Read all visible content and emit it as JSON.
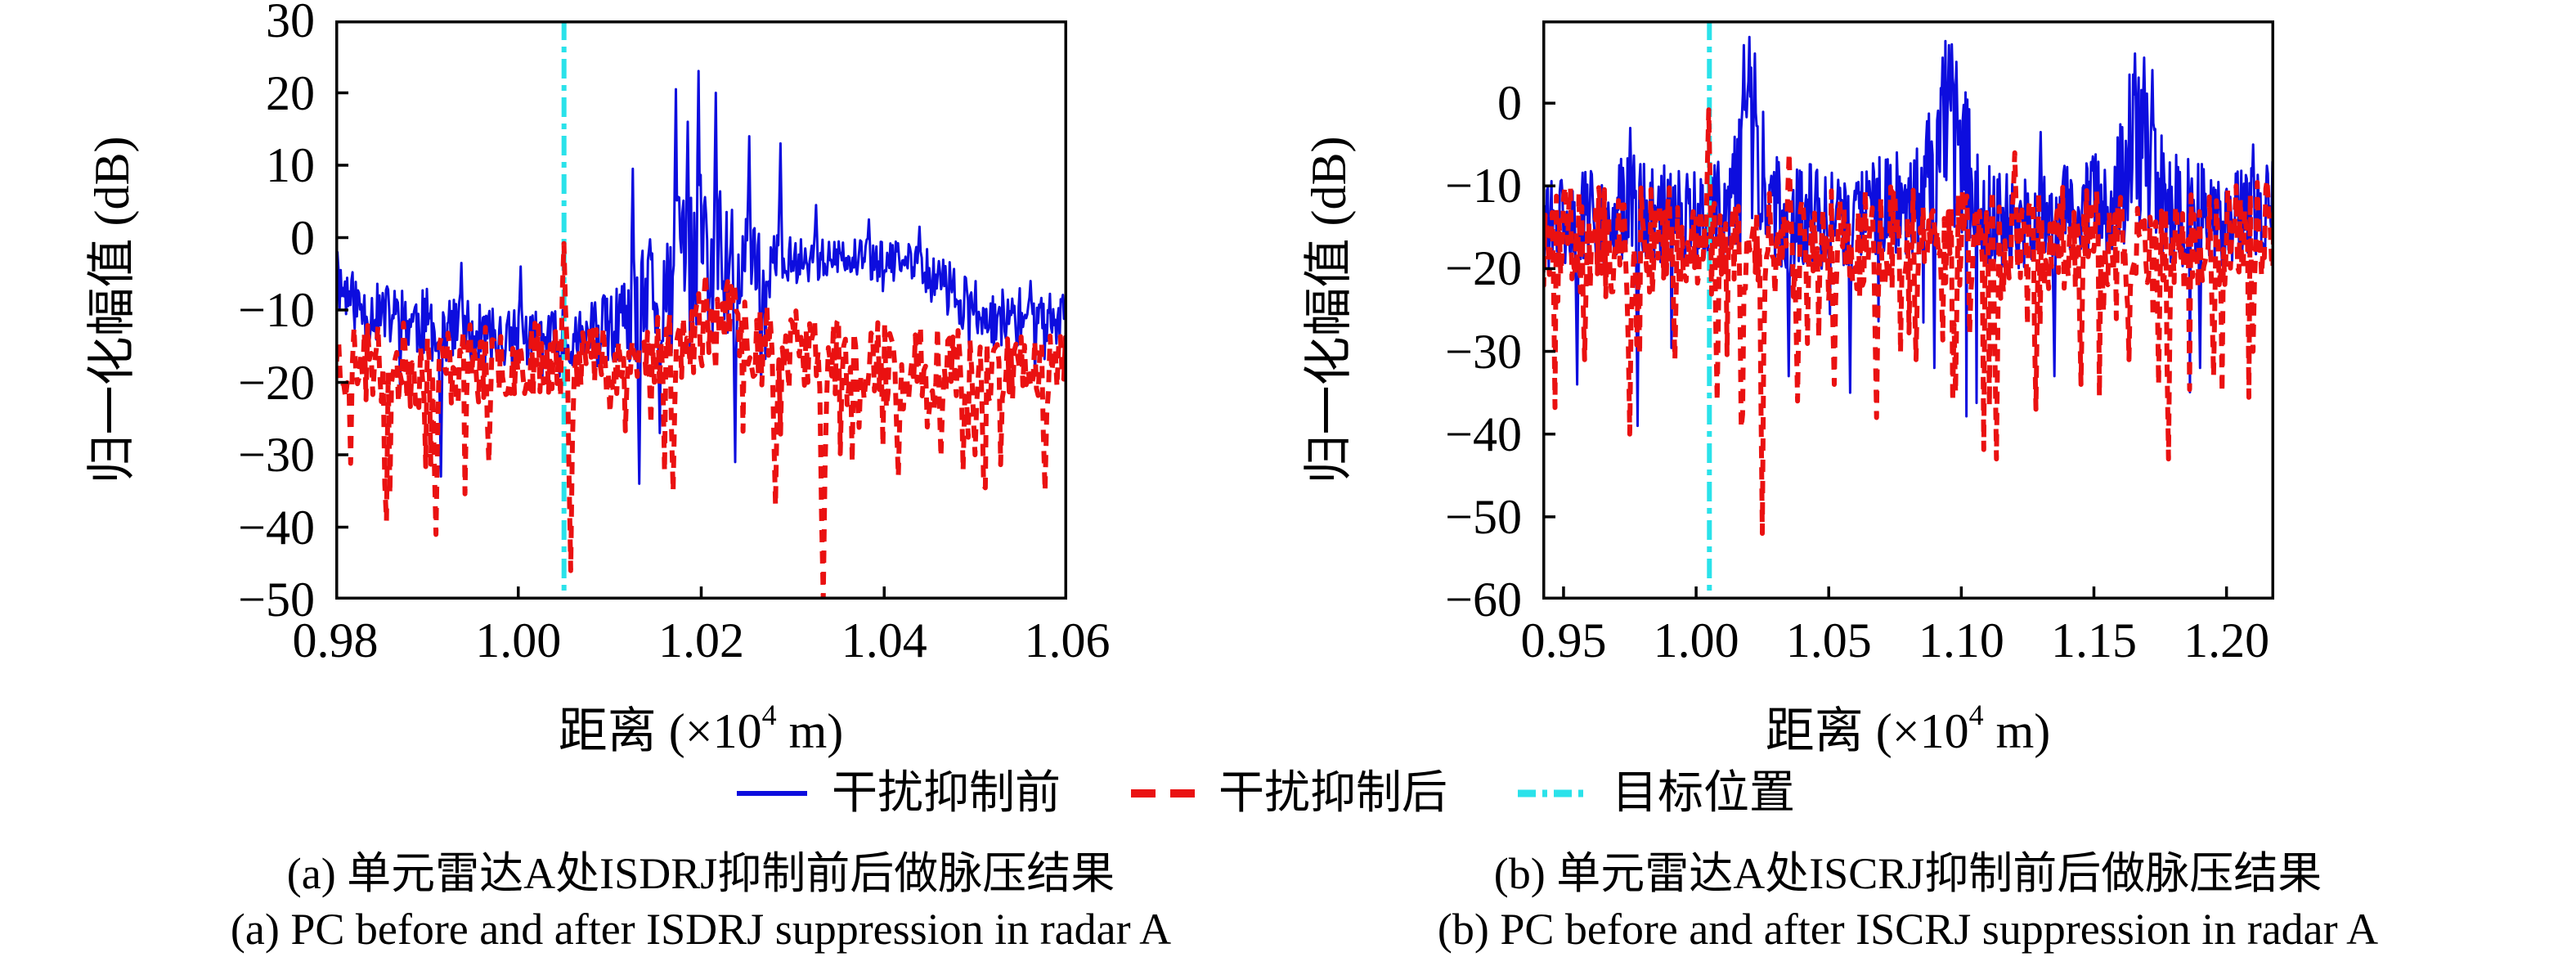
{
  "figure": {
    "background": "#ffffff",
    "axis_color": "#000000",
    "legend": {
      "items": [
        {
          "label": "干扰抑制前",
          "color": "#0d0dde",
          "width": 6,
          "dash": "none",
          "style": "solid"
        },
        {
          "label": "干扰抑制后",
          "color": "#ea1111",
          "width": 10,
          "dash": "30 18",
          "style": "dashed"
        },
        {
          "label": "目标位置",
          "color": "#2ae2ea",
          "width": 9,
          "dash": "22 8 6 8",
          "style": "dashdot"
        }
      ]
    },
    "captions": {
      "a_cn": "(a) 单元雷达A处ISDRJ抑制前后做脉压结果",
      "a_en": "(a) PC before and after ISDRJ suppression in radar A",
      "b_cn": "(b) 单元雷达A处ISCRJ抑制前后做脉压结果",
      "b_en": "(b) PC before and after ISCRJ suppression in radar A"
    }
  },
  "chart_data": [
    {
      "id": "a",
      "type": "line",
      "xlabel_prefix": "距离 (×10",
      "xlabel_sup": "4",
      "xlabel_suffix": " m)",
      "ylabel": "归一化幅值 (dB)",
      "xlim": [
        0.98,
        1.06
      ],
      "ylim": [
        -50,
        30
      ],
      "grid": false,
      "xtick_vals": [
        0.98,
        1.0,
        1.02,
        1.04,
        1.06
      ],
      "xtick_labels": [
        "0.98",
        "1.00",
        "1.02",
        "1.04",
        "1.06"
      ],
      "ytick_vals": [
        30,
        20,
        10,
        0,
        -10,
        -20,
        -30,
        -40,
        -50
      ],
      "ytick_labels": [
        "30",
        "20",
        "10",
        "0",
        "−10",
        "−20",
        "−30",
        "−40",
        "−50"
      ],
      "target": {
        "x": 1.005,
        "color": "#2ae2ea",
        "width": 6,
        "dash": "24 8 7 8",
        "label": "目标位置"
      },
      "series": [
        {
          "name": "干扰抑制前",
          "color": "#0d0dde",
          "width": 3,
          "dash": "none",
          "seed": 11,
          "n": 680,
          "dip_prob": 0.012,
          "envelope": [
            [
              0.98,
              -6,
              4
            ],
            [
              0.983,
              -10,
              4
            ],
            [
              0.99,
              -12,
              5
            ],
            [
              0.998,
              -14,
              4
            ],
            [
              1.006,
              -14,
              4
            ],
            [
              1.012,
              -12,
              6
            ],
            [
              1.016,
              -6,
              11
            ],
            [
              1.02,
              -3,
              14
            ],
            [
              1.024,
              -5,
              11
            ],
            [
              1.027,
              -4,
              5
            ],
            [
              1.031,
              -3,
              3
            ],
            [
              1.043,
              -3.5,
              3
            ],
            [
              1.047,
              -7,
              4
            ],
            [
              1.051,
              -11,
              4
            ],
            [
              1.06,
              -11,
              4
            ]
          ],
          "spikes": [
            [
              0.9802,
              -2
            ],
            [
              0.9938,
              -3.5
            ],
            [
              1.0003,
              -4
            ],
            [
              1.0125,
              9.5
            ],
            [
              1.0172,
              20.5
            ],
            [
              1.0185,
              16
            ],
            [
              1.0197,
              23
            ],
            [
              1.0216,
              20
            ],
            [
              1.0252,
              14
            ],
            [
              1.0287,
              13
            ],
            [
              1.0325,
              4.5
            ],
            [
              1.0383,
              2.5
            ],
            [
              1.0438,
              1.5
            ],
            [
              1.056,
              -6
            ]
          ],
          "dips": [
            [
              0.9916,
              -33
            ],
            [
              1.0132,
              -34
            ],
            [
              1.0155,
              -27
            ],
            [
              1.0237,
              -31
            ],
            [
              1.0265,
              -20
            ]
          ]
        },
        {
          "name": "干扰抑制后",
          "color": "#ea1111",
          "width": 6,
          "dash": "15 11",
          "seed": 23,
          "n": 430,
          "dip_prob": 0.05,
          "envelope": [
            [
              0.98,
              -17,
              6
            ],
            [
              0.99,
              -18,
              6
            ],
            [
              1.0,
              -17,
              5
            ],
            [
              1.006,
              -16,
              5
            ],
            [
              1.012,
              -17,
              5
            ],
            [
              1.019,
              -14,
              6
            ],
            [
              1.023,
              -12,
              6
            ],
            [
              1.028,
              -15,
              6
            ],
            [
              1.034,
              -17,
              6
            ],
            [
              1.042,
              -18,
              6
            ],
            [
              1.052,
              -18,
              5
            ],
            [
              1.06,
              -17,
              5
            ]
          ],
          "spikes": [
            [
              1.005,
              -0.8
            ],
            [
              1.0205,
              -5
            ],
            [
              1.0237,
              -6.5
            ]
          ],
          "dips": [
            [
              0.991,
              -41
            ],
            [
              0.9968,
              -31
            ],
            [
              1.0057,
              -46
            ],
            [
              1.017,
              -35
            ],
            [
              1.0282,
              -37
            ],
            [
              1.0333,
              -56
            ],
            [
              1.0415,
              -33
            ],
            [
              1.05,
              -30
            ],
            [
              1.0575,
              -35
            ]
          ]
        }
      ]
    },
    {
      "id": "b",
      "type": "line",
      "xlabel_prefix": "距离 (×10",
      "xlabel_sup": "4",
      "xlabel_suffix": " m)",
      "ylabel": "归一化幅值 (dB)",
      "xlim": [
        0.942,
        1.218
      ],
      "ylim": [
        -60,
        10
      ],
      "grid": false,
      "xtick_vals": [
        0.95,
        1.0,
        1.05,
        1.1,
        1.15,
        1.2
      ],
      "xtick_labels": [
        "0.95",
        "1.00",
        "1.05",
        "1.10",
        "1.15",
        "1.20"
      ],
      "ytick_vals": [
        0,
        -10,
        -20,
        -30,
        -40,
        -50,
        -60
      ],
      "ytick_labels": [
        "0",
        "−10",
        "−20",
        "−30",
        "−40",
        "−50",
        "−60"
      ],
      "target": {
        "x": 1.005,
        "color": "#2ae2ea",
        "width": 6,
        "dash": "24 8 7 8",
        "label": "目标位置"
      },
      "series": [
        {
          "name": "干扰抑制前",
          "color": "#0d0dde",
          "width": 3,
          "dash": "none",
          "seed": 31,
          "n": 800,
          "dip_prob": 0.012,
          "envelope": [
            [
              0.942,
              -15,
              6
            ],
            [
              0.96,
              -14,
              6
            ],
            [
              0.978,
              -13,
              7
            ],
            [
              1.0,
              -14,
              6
            ],
            [
              1.013,
              -12,
              7
            ],
            [
              1.016,
              -8,
              10
            ],
            [
              1.02,
              -4,
              12
            ],
            [
              1.0245,
              -8,
              10
            ],
            [
              1.029,
              -13,
              7
            ],
            [
              1.05,
              -14,
              6
            ],
            [
              1.085,
              -12,
              7
            ],
            [
              1.09,
              -6,
              11
            ],
            [
              1.0955,
              -3,
              12
            ],
            [
              1.101,
              -7,
              10
            ],
            [
              1.106,
              -13,
              7
            ],
            [
              1.13,
              -14,
              6
            ],
            [
              1.158,
              -12,
              7
            ],
            [
              1.163,
              -6,
              11
            ],
            [
              1.168,
              -4,
              12
            ],
            [
              1.174,
              -8,
              10
            ],
            [
              1.179,
              -13,
              7
            ],
            [
              1.2,
              -14,
              6
            ],
            [
              1.218,
              -13,
              6
            ]
          ],
          "spikes": [
            [
              0.975,
              -3
            ],
            [
              1.018,
              7
            ],
            [
              1.02,
              8
            ],
            [
              1.0222,
              6
            ],
            [
              1.093,
              5.5
            ],
            [
              1.0952,
              7
            ],
            [
              1.098,
              5
            ],
            [
              1.1655,
              6
            ],
            [
              1.169,
              5.5
            ],
            [
              1.172,
              4
            ],
            [
              1.13,
              -3.5
            ],
            [
              1.21,
              -5
            ]
          ],
          "dips": [
            [
              0.955,
              -34
            ],
            [
              0.978,
              -39
            ],
            [
              1.035,
              -33
            ],
            [
              1.058,
              -35
            ],
            [
              1.09,
              -32
            ],
            [
              1.135,
              -33
            ],
            [
              1.19,
              -32
            ]
          ]
        },
        {
          "name": "干扰抑制后",
          "color": "#ea1111",
          "width": 6,
          "dash": "15 11",
          "seed": 47,
          "n": 520,
          "dip_prob": 0.05,
          "envelope": [
            [
              0.942,
              -16,
              6
            ],
            [
              0.97,
              -17,
              7
            ],
            [
              1.0,
              -16,
              6
            ],
            [
              1.02,
              -16,
              7
            ],
            [
              1.05,
              -17,
              7
            ],
            [
              1.08,
              -16,
              6
            ],
            [
              1.11,
              -17,
              7
            ],
            [
              1.15,
              -16,
              6
            ],
            [
              1.18,
              -17,
              6
            ],
            [
              1.218,
              -15,
              6
            ]
          ],
          "spikes": [
            [
              1.005,
              -0.8
            ],
            [
              1.035,
              -6
            ],
            [
              1.12,
              -6
            ]
          ],
          "dips": [
            [
              0.958,
              -31
            ],
            [
              0.975,
              -40
            ],
            [
              0.992,
              -31
            ],
            [
              1.008,
              -36
            ],
            [
              1.025,
              -52
            ],
            [
              1.038,
              -36
            ],
            [
              1.052,
              -34
            ],
            [
              1.068,
              -38
            ],
            [
              1.083,
              -31
            ],
            [
              1.098,
              -35
            ],
            [
              1.113,
              -43
            ],
            [
              1.128,
              -37
            ],
            [
              1.145,
              -34
            ],
            [
              1.163,
              -31
            ],
            [
              1.178,
              -43
            ],
            [
              1.195,
              -33
            ],
            [
              1.21,
              -30
            ]
          ]
        }
      ]
    }
  ]
}
